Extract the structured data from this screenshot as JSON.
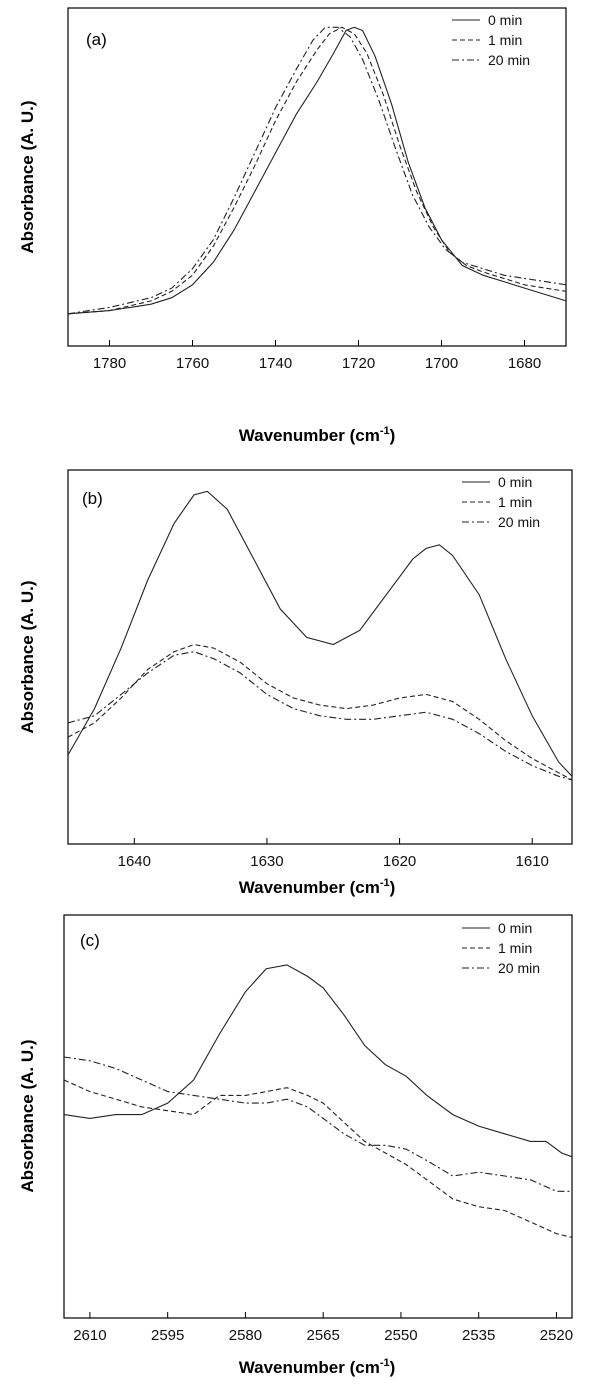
{
  "chart_data": [
    {
      "type": "line",
      "panel_label": "(a)",
      "xlabel": "Wavenumber (cm",
      "xlabel_sup": "-1",
      "xlabel_close": ")",
      "ylabel": "Absorbance (A. U.)",
      "xlim": [
        1790,
        1670
      ],
      "ylim": [
        0,
        1.05
      ],
      "x_reversed": true,
      "x_ticks": [
        1780,
        1760,
        1740,
        1720,
        1700,
        1680
      ],
      "legend_position": "top-right",
      "series": [
        {
          "name": "0 min",
          "style": "solid",
          "points": [
            [
              1790,
              0.1
            ],
            [
              1780,
              0.11
            ],
            [
              1770,
              0.13
            ],
            [
              1765,
              0.15
            ],
            [
              1760,
              0.19
            ],
            [
              1755,
              0.26
            ],
            [
              1750,
              0.36
            ],
            [
              1745,
              0.48
            ],
            [
              1740,
              0.6
            ],
            [
              1735,
              0.72
            ],
            [
              1730,
              0.82
            ],
            [
              1726,
              0.91
            ],
            [
              1723,
              0.98
            ],
            [
              1721,
              0.99
            ],
            [
              1719,
              0.98
            ],
            [
              1716,
              0.9
            ],
            [
              1712,
              0.75
            ],
            [
              1708,
              0.57
            ],
            [
              1704,
              0.43
            ],
            [
              1700,
              0.33
            ],
            [
              1695,
              0.25
            ],
            [
              1690,
              0.22
            ],
            [
              1685,
              0.2
            ],
            [
              1680,
              0.18
            ],
            [
              1675,
              0.16
            ],
            [
              1670,
              0.14
            ]
          ]
        },
        {
          "name": "1 min",
          "style": "dashed",
          "points": [
            [
              1790,
              0.1
            ],
            [
              1780,
              0.11
            ],
            [
              1770,
              0.14
            ],
            [
              1765,
              0.17
            ],
            [
              1760,
              0.22
            ],
            [
              1755,
              0.31
            ],
            [
              1750,
              0.43
            ],
            [
              1745,
              0.56
            ],
            [
              1740,
              0.7
            ],
            [
              1735,
              0.82
            ],
            [
              1730,
              0.92
            ],
            [
              1727,
              0.97
            ],
            [
              1724,
              0.99
            ],
            [
              1721,
              0.97
            ],
            [
              1718,
              0.91
            ],
            [
              1714,
              0.78
            ],
            [
              1710,
              0.62
            ],
            [
              1706,
              0.48
            ],
            [
              1702,
              0.37
            ],
            [
              1698,
              0.29
            ],
            [
              1694,
              0.25
            ],
            [
              1690,
              0.23
            ],
            [
              1685,
              0.21
            ],
            [
              1680,
              0.19
            ],
            [
              1675,
              0.18
            ],
            [
              1670,
              0.17
            ]
          ]
        },
        {
          "name": "20 min",
          "style": "dashdot",
          "points": [
            [
              1790,
              0.1
            ],
            [
              1780,
              0.12
            ],
            [
              1770,
              0.15
            ],
            [
              1765,
              0.18
            ],
            [
              1760,
              0.24
            ],
            [
              1755,
              0.33
            ],
            [
              1750,
              0.46
            ],
            [
              1745,
              0.6
            ],
            [
              1740,
              0.74
            ],
            [
              1735,
              0.86
            ],
            [
              1731,
              0.95
            ],
            [
              1728,
              0.99
            ],
            [
              1725,
              0.99
            ],
            [
              1722,
              0.96
            ],
            [
              1719,
              0.89
            ],
            [
              1715,
              0.76
            ],
            [
              1711,
              0.61
            ],
            [
              1707,
              0.47
            ],
            [
              1703,
              0.37
            ],
            [
              1699,
              0.3
            ],
            [
              1695,
              0.26
            ],
            [
              1690,
              0.24
            ],
            [
              1685,
              0.22
            ],
            [
              1680,
              0.21
            ],
            [
              1675,
              0.2
            ],
            [
              1670,
              0.19
            ]
          ]
        }
      ]
    },
    {
      "type": "line",
      "panel_label": "(b)",
      "xlabel": "Wavenumber (cm",
      "xlabel_sup": "-1",
      "xlabel_close": ")",
      "ylabel": "Absorbance (A. U.)",
      "xlim": [
        1645,
        1607
      ],
      "ylim": [
        0,
        1.05
      ],
      "x_reversed": true,
      "x_ticks": [
        1640,
        1630,
        1620,
        1610
      ],
      "legend_position": "top-right",
      "series": [
        {
          "name": "0 min",
          "style": "solid",
          "points": [
            [
              1645,
              0.25
            ],
            [
              1643,
              0.38
            ],
            [
              1641,
              0.55
            ],
            [
              1639,
              0.74
            ],
            [
              1637,
              0.9
            ],
            [
              1635.5,
              0.98
            ],
            [
              1634.5,
              0.99
            ],
            [
              1633,
              0.94
            ],
            [
              1631,
              0.8
            ],
            [
              1629,
              0.66
            ],
            [
              1627,
              0.58
            ],
            [
              1625,
              0.56
            ],
            [
              1623,
              0.6
            ],
            [
              1621,
              0.7
            ],
            [
              1619,
              0.8
            ],
            [
              1618,
              0.83
            ],
            [
              1617,
              0.84
            ],
            [
              1616,
              0.81
            ],
            [
              1614,
              0.7
            ],
            [
              1612,
              0.52
            ],
            [
              1610,
              0.36
            ],
            [
              1608,
              0.23
            ],
            [
              1607,
              0.19
            ]
          ]
        },
        {
          "name": "1 min",
          "style": "dashed",
          "points": [
            [
              1645,
              0.3
            ],
            [
              1643,
              0.34
            ],
            [
              1641,
              0.41
            ],
            [
              1639,
              0.49
            ],
            [
              1637,
              0.54
            ],
            [
              1635.5,
              0.56
            ],
            [
              1634,
              0.55
            ],
            [
              1632,
              0.51
            ],
            [
              1630,
              0.45
            ],
            [
              1628,
              0.41
            ],
            [
              1626,
              0.39
            ],
            [
              1624,
              0.38
            ],
            [
              1622,
              0.39
            ],
            [
              1620,
              0.41
            ],
            [
              1618,
              0.42
            ],
            [
              1616,
              0.4
            ],
            [
              1614,
              0.35
            ],
            [
              1612,
              0.29
            ],
            [
              1610,
              0.24
            ],
            [
              1608,
              0.2
            ],
            [
              1607,
              0.18
            ]
          ]
        },
        {
          "name": "20 min",
          "style": "dashdot",
          "points": [
            [
              1645,
              0.34
            ],
            [
              1643,
              0.36
            ],
            [
              1641,
              0.42
            ],
            [
              1639,
              0.48
            ],
            [
              1637,
              0.53
            ],
            [
              1635.5,
              0.54
            ],
            [
              1634,
              0.52
            ],
            [
              1632,
              0.48
            ],
            [
              1630,
              0.42
            ],
            [
              1628,
              0.38
            ],
            [
              1626,
              0.36
            ],
            [
              1624,
              0.35
            ],
            [
              1622,
              0.35
            ],
            [
              1620,
              0.36
            ],
            [
              1618,
              0.37
            ],
            [
              1616,
              0.35
            ],
            [
              1614,
              0.31
            ],
            [
              1612,
              0.26
            ],
            [
              1610,
              0.22
            ],
            [
              1608,
              0.19
            ],
            [
              1607,
              0.18
            ]
          ]
        }
      ]
    },
    {
      "type": "line",
      "panel_label": "(c)",
      "xlabel": "Wavenumber (cm",
      "xlabel_sup": "-1",
      "xlabel_close": ")",
      "ylabel": "Absorbance (A. U.)",
      "xlim": [
        2615,
        2517
      ],
      "ylim": [
        0,
        1.05
      ],
      "x_reversed": true,
      "x_ticks": [
        2610,
        2595,
        2580,
        2565,
        2550,
        2535,
        2520
      ],
      "legend_position": "top-right",
      "series": [
        {
          "name": "0 min",
          "style": "solid",
          "points": [
            [
              2615,
              0.53
            ],
            [
              2610,
              0.52
            ],
            [
              2605,
              0.53
            ],
            [
              2600,
              0.53
            ],
            [
              2595,
              0.56
            ],
            [
              2590,
              0.62
            ],
            [
              2585,
              0.74
            ],
            [
              2580,
              0.85
            ],
            [
              2576,
              0.91
            ],
            [
              2572,
              0.92
            ],
            [
              2568,
              0.89
            ],
            [
              2565,
              0.86
            ],
            [
              2561,
              0.79
            ],
            [
              2557,
              0.71
            ],
            [
              2553,
              0.66
            ],
            [
              2549,
              0.63
            ],
            [
              2545,
              0.58
            ],
            [
              2540,
              0.53
            ],
            [
              2535,
              0.5
            ],
            [
              2530,
              0.48
            ],
            [
              2525,
              0.46
            ],
            [
              2522,
              0.46
            ],
            [
              2519,
              0.43
            ],
            [
              2517,
              0.42
            ]
          ]
        },
        {
          "name": "1 min",
          "style": "dashed",
          "points": [
            [
              2615,
              0.62
            ],
            [
              2610,
              0.59
            ],
            [
              2605,
              0.57
            ],
            [
              2600,
              0.55
            ],
            [
              2595,
              0.54
            ],
            [
              2590,
              0.53
            ],
            [
              2585,
              0.58
            ],
            [
              2580,
              0.58
            ],
            [
              2576,
              0.59
            ],
            [
              2572,
              0.6
            ],
            [
              2568,
              0.58
            ],
            [
              2565,
              0.56
            ],
            [
              2561,
              0.51
            ],
            [
              2557,
              0.46
            ],
            [
              2553,
              0.43
            ],
            [
              2549,
              0.4
            ],
            [
              2545,
              0.36
            ],
            [
              2540,
              0.31
            ],
            [
              2535,
              0.29
            ],
            [
              2530,
              0.28
            ],
            [
              2525,
              0.25
            ],
            [
              2520,
              0.22
            ],
            [
              2517,
              0.21
            ]
          ]
        },
        {
          "name": "20 min",
          "style": "dashdot",
          "points": [
            [
              2615,
              0.68
            ],
            [
              2610,
              0.67
            ],
            [
              2605,
              0.65
            ],
            [
              2600,
              0.62
            ],
            [
              2595,
              0.59
            ],
            [
              2590,
              0.58
            ],
            [
              2585,
              0.57
            ],
            [
              2580,
              0.56
            ],
            [
              2576,
              0.56
            ],
            [
              2572,
              0.57
            ],
            [
              2568,
              0.55
            ],
            [
              2565,
              0.52
            ],
            [
              2561,
              0.48
            ],
            [
              2557,
              0.45
            ],
            [
              2553,
              0.45
            ],
            [
              2549,
              0.44
            ],
            [
              2545,
              0.41
            ],
            [
              2540,
              0.37
            ],
            [
              2535,
              0.38
            ],
            [
              2530,
              0.37
            ],
            [
              2525,
              0.36
            ],
            [
              2520,
              0.33
            ],
            [
              2517,
              0.33
            ]
          ]
        }
      ]
    }
  ]
}
